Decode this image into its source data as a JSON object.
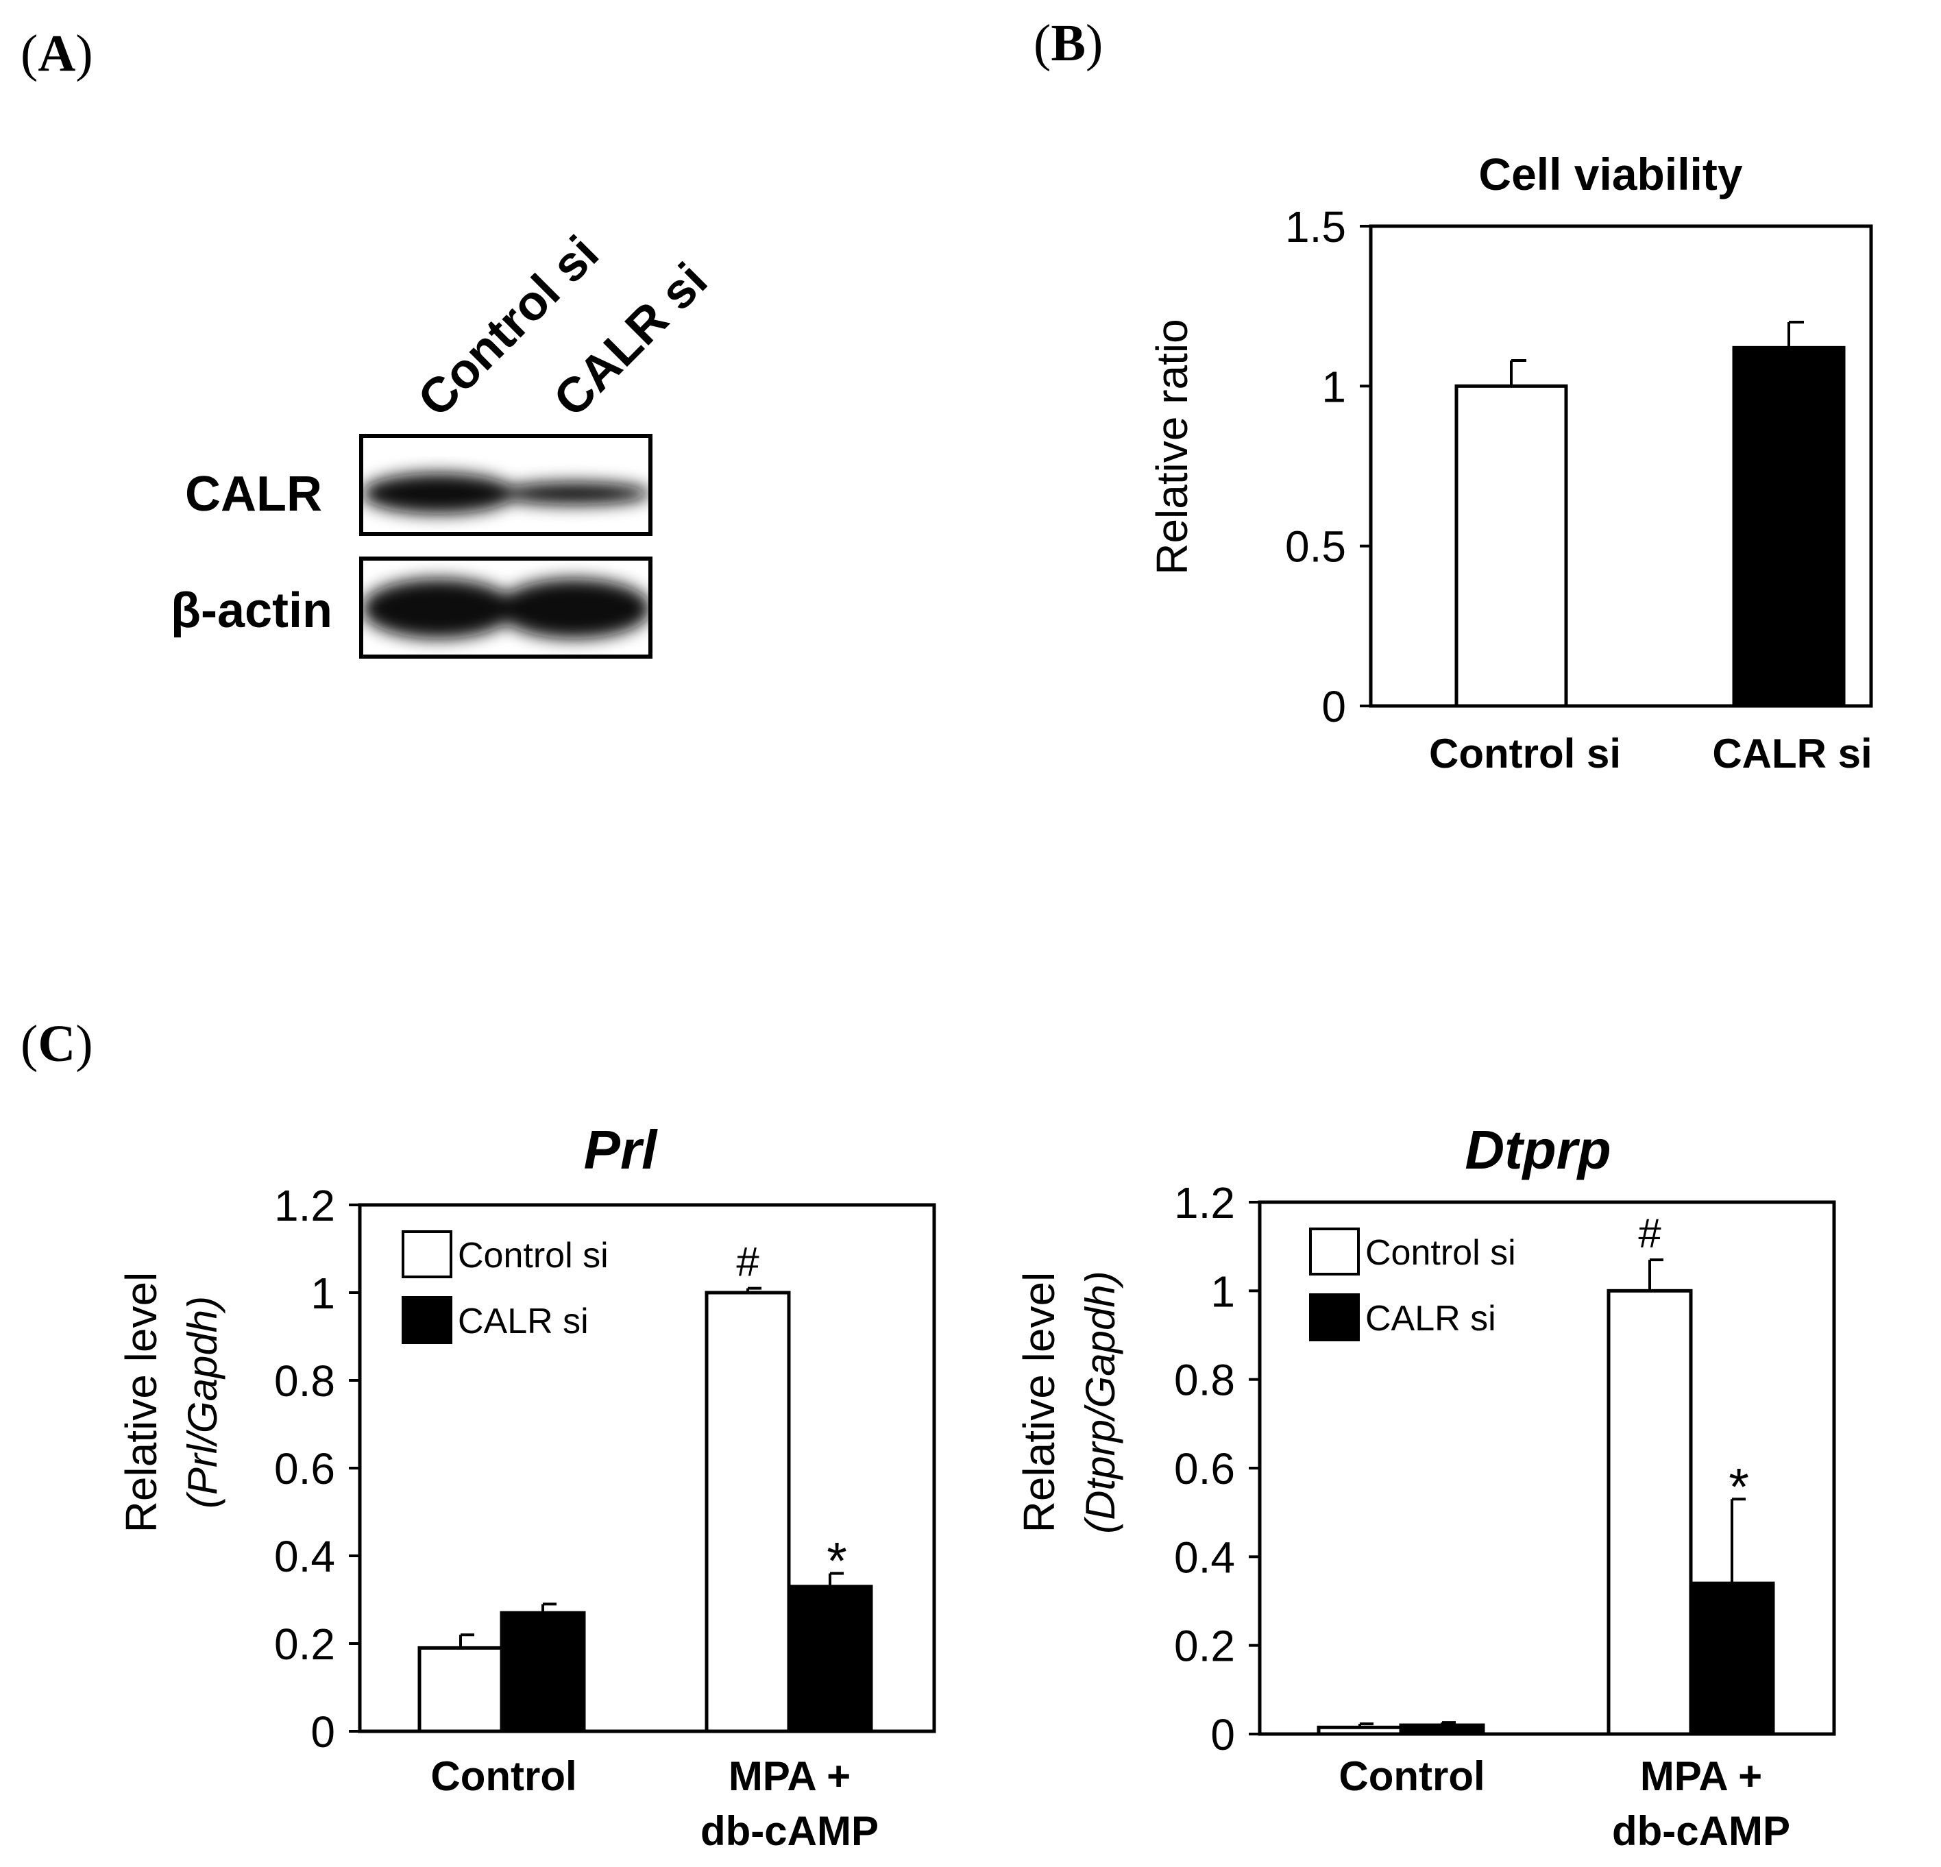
{
  "panels": {
    "A": {
      "label_prefix": "(",
      "label_letter": "A",
      "label_suffix": ")"
    },
    "B": {
      "label_prefix": "(",
      "label_letter": "B",
      "label_suffix": ")"
    },
    "C": {
      "label_prefix": "(",
      "label_letter": "C",
      "label_suffix": ")"
    }
  },
  "western_blot": {
    "lanes": [
      "Control si",
      "CALR si"
    ],
    "rows": [
      "CALR",
      "β-actin"
    ],
    "band_intensity": {
      "CALR": [
        1.0,
        0.55
      ],
      "β-actin": [
        1.0,
        1.0
      ]
    },
    "band_color": "#111111"
  },
  "chart_data": [
    {
      "type": "bar",
      "panel": "B",
      "title": "Cell viability",
      "xlabel": "",
      "ylabel": "Relative ratio",
      "categories": [
        "Control si",
        "CALR si"
      ],
      "values": [
        1.0,
        1.12
      ],
      "errors": [
        0.08,
        0.08
      ],
      "fills": [
        "#ffffff",
        "#000000"
      ],
      "ylim": [
        0,
        1.5
      ],
      "yticks": [
        "0",
        "0.5",
        "1",
        "1.5"
      ],
      "ytick_values": [
        0,
        0.5,
        1,
        1.5
      ],
      "grid": false
    },
    {
      "type": "bar",
      "panel": "C",
      "title": "Prl",
      "xlabel": "",
      "ylabel_line1": "Relative level",
      "ylabel_line2": "(Prl/Gapdh)",
      "categories": [
        "Control",
        "MPA + db-cAMP"
      ],
      "category_lines": [
        [
          "Control"
        ],
        [
          "MPA +",
          "db-cAMP"
        ]
      ],
      "series": [
        {
          "name": "Control si",
          "values": [
            0.19,
            1.0
          ],
          "errors": [
            0.03,
            0.01
          ],
          "marks": [
            "",
            "#"
          ],
          "fill": "#ffffff"
        },
        {
          "name": "CALR si",
          "values": [
            0.27,
            0.33
          ],
          "errors": [
            0.02,
            0.03
          ],
          "marks": [
            "",
            "*"
          ],
          "fill": "#000000"
        }
      ],
      "ylim": [
        0,
        1.2
      ],
      "yticks": [
        "0",
        "0.2",
        "0.4",
        "0.6",
        "0.8",
        "1",
        "1.2"
      ],
      "ytick_values": [
        0,
        0.2,
        0.4,
        0.6,
        0.8,
        1.0,
        1.2
      ],
      "legend": "top-left",
      "grid": false
    },
    {
      "type": "bar",
      "panel": "C",
      "title": "Dtprp",
      "xlabel": "",
      "ylabel_line1": "Relative level",
      "ylabel_line2": "(Dtprp/Gapdh)",
      "categories": [
        "Control",
        "MPA + db-cAMP"
      ],
      "category_lines": [
        [
          "Control"
        ],
        [
          "MPA +",
          "db-cAMP"
        ]
      ],
      "series": [
        {
          "name": "Control si",
          "values": [
            0.015,
            1.0
          ],
          "errors": [
            0.008,
            0.07
          ],
          "marks": [
            "",
            "#"
          ],
          "fill": "#ffffff"
        },
        {
          "name": "CALR si",
          "values": [
            0.02,
            0.34
          ],
          "errors": [
            0.006,
            0.19
          ],
          "marks": [
            "",
            "*"
          ],
          "fill": "#000000"
        }
      ],
      "ylim": [
        0,
        1.2
      ],
      "yticks": [
        "0",
        "0.2",
        "0.4",
        "0.6",
        "0.8",
        "1",
        "1.2"
      ],
      "ytick_values": [
        0,
        0.2,
        0.4,
        0.6,
        0.8,
        1.0,
        1.2
      ],
      "legend": "top-left",
      "grid": false
    }
  ]
}
